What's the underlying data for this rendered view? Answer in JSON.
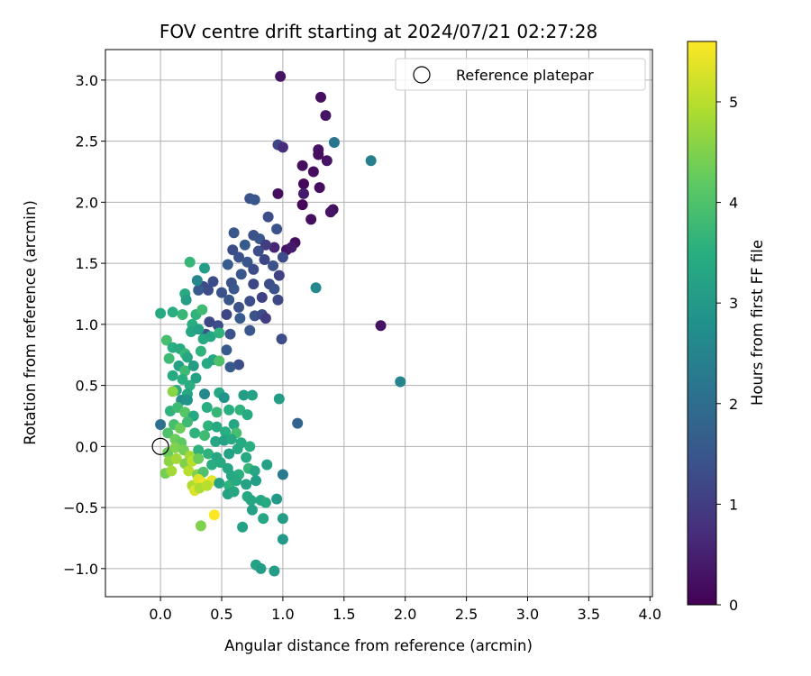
{
  "chart_data": {
    "type": "scatter",
    "title": "FOV centre drift starting at 2024/07/21 02:27:28",
    "xlabel": "Angular distance from reference (arcmin)",
    "ylabel": "Rotation from reference (arcmin)",
    "xlim": [
      -0.45,
      4.02
    ],
    "ylim": [
      -1.23,
      3.25
    ],
    "xticks": [
      "0.0",
      "0.5",
      "1.0",
      "1.5",
      "2.0",
      "2.5",
      "3.0",
      "3.5",
      "4.0"
    ],
    "yticks": [
      "−1.0",
      "−0.5",
      "0.0",
      "0.5",
      "1.0",
      "1.5",
      "2.0",
      "2.5",
      "3.0"
    ],
    "grid": true,
    "legend": {
      "location": "top-right",
      "entries": [
        "Reference platepar"
      ]
    },
    "reference_point": {
      "x": 0.0,
      "y": 0.0,
      "marker": "open-circle"
    },
    "colorbar": {
      "label": "Hours from first FF file",
      "colormap": "viridis",
      "range": [
        0,
        5.6
      ],
      "ticks": [
        "0",
        "1",
        "2",
        "3",
        "4",
        "5"
      ]
    },
    "points": [
      [
        0.98,
        3.03,
        0.3
      ],
      [
        1.31,
        2.86,
        0.2
      ],
      [
        1.35,
        2.71,
        0.3
      ],
      [
        0.96,
        2.47,
        1.2
      ],
      [
        1.0,
        2.45,
        0.7
      ],
      [
        1.29,
        2.43,
        0.3
      ],
      [
        1.29,
        2.39,
        0.2
      ],
      [
        1.42,
        2.49,
        2.2
      ],
      [
        1.36,
        2.34,
        0.3
      ],
      [
        1.72,
        2.34,
        2.4
      ],
      [
        1.16,
        2.3,
        0.2
      ],
      [
        1.25,
        2.25,
        0.2
      ],
      [
        1.17,
        2.15,
        0.1
      ],
      [
        1.17,
        2.07,
        0.4
      ],
      [
        1.3,
        2.12,
        0.2
      ],
      [
        1.16,
        1.98,
        0.1
      ],
      [
        0.96,
        2.07,
        0.2
      ],
      [
        1.41,
        1.94,
        0.2
      ],
      [
        1.39,
        1.92,
        0.3
      ],
      [
        1.23,
        1.86,
        0.2
      ],
      [
        0.73,
        2.03,
        1.4
      ],
      [
        0.77,
        2.02,
        1.5
      ],
      [
        0.88,
        1.88,
        1.3
      ],
      [
        0.95,
        1.78,
        1.4
      ],
      [
        0.81,
        1.7,
        1.5
      ],
      [
        1.1,
        1.67,
        0.2
      ],
      [
        1.03,
        1.61,
        0.3
      ],
      [
        1.07,
        1.63,
        0.4
      ],
      [
        0.93,
        1.63,
        0.6
      ],
      [
        0.86,
        1.65,
        1.0
      ],
      [
        0.6,
        1.75,
        1.5
      ],
      [
        0.69,
        1.65,
        1.6
      ],
      [
        0.76,
        1.73,
        1.4
      ],
      [
        0.8,
        1.6,
        1.3
      ],
      [
        0.59,
        1.61,
        1.3
      ],
      [
        0.64,
        1.55,
        1.4
      ],
      [
        0.85,
        1.53,
        1.2
      ],
      [
        0.71,
        1.51,
        1.5
      ],
      [
        0.92,
        1.48,
        1.4
      ],
      [
        1.0,
        1.55,
        1.3
      ],
      [
        0.55,
        1.49,
        1.6
      ],
      [
        0.76,
        1.45,
        1.3
      ],
      [
        0.66,
        1.41,
        1.5
      ],
      [
        0.97,
        1.4,
        1.1
      ],
      [
        0.58,
        1.34,
        1.4
      ],
      [
        0.43,
        1.35,
        1.3
      ],
      [
        0.5,
        1.26,
        1.4
      ],
      [
        0.6,
        1.29,
        1.5
      ],
      [
        0.76,
        1.33,
        1.2
      ],
      [
        0.89,
        1.33,
        1.3
      ],
      [
        0.93,
        1.29,
        1.4
      ],
      [
        0.83,
        1.22,
        1.1
      ],
      [
        0.35,
        1.31,
        1.3
      ],
      [
        0.39,
        1.28,
        1.3
      ],
      [
        0.31,
        1.28,
        1.6
      ],
      [
        0.56,
        1.2,
        1.5
      ],
      [
        0.64,
        1.14,
        1.4
      ],
      [
        0.73,
        1.19,
        1.3
      ],
      [
        0.96,
        1.2,
        1.2
      ],
      [
        0.54,
        1.08,
        1.2
      ],
      [
        0.65,
        1.05,
        1.6
      ],
      [
        0.77,
        1.07,
        1.4
      ],
      [
        0.83,
        1.08,
        1.3
      ],
      [
        0.86,
        1.05,
        1.0
      ],
      [
        0.4,
        1.02,
        1.2
      ],
      [
        0.47,
        0.99,
        1.3
      ],
      [
        0.37,
        0.92,
        1.5
      ],
      [
        0.57,
        0.92,
        1.4
      ],
      [
        0.73,
        0.95,
        1.5
      ],
      [
        0.99,
        0.88,
        1.3
      ],
      [
        1.8,
        0.99,
        0.3
      ],
      [
        1.27,
        1.3,
        2.6
      ],
      [
        1.96,
        0.53,
        2.5
      ],
      [
        0.54,
        0.79,
        1.6
      ],
      [
        0.64,
        0.67,
        1.3
      ],
      [
        0.57,
        0.65,
        1.6
      ],
      [
        0.24,
        1.51,
        3.7
      ],
      [
        0.36,
        1.46,
        3.1
      ],
      [
        0.18,
        1.08,
        3.7
      ],
      [
        0.0,
        1.09,
        3.4
      ],
      [
        0.1,
        1.1,
        3.5
      ],
      [
        0.2,
        1.25,
        3.4
      ],
      [
        0.21,
        1.2,
        3.1
      ],
      [
        0.3,
        1.36,
        2.6
      ],
      [
        0.26,
        1.0,
        3.5
      ],
      [
        0.29,
        1.08,
        3.6
      ],
      [
        0.34,
        1.12,
        3.8
      ],
      [
        0.25,
        0.94,
        3.3
      ],
      [
        0.31,
        0.96,
        3.2
      ],
      [
        0.35,
        0.88,
        3.4
      ],
      [
        0.41,
        0.9,
        3.3
      ],
      [
        0.48,
        0.93,
        3.6
      ],
      [
        0.05,
        0.87,
        3.9
      ],
      [
        0.1,
        0.81,
        3.5
      ],
      [
        0.16,
        0.8,
        3.4
      ],
      [
        0.2,
        0.76,
        3.7
      ],
      [
        0.22,
        0.73,
        3.3
      ],
      [
        0.33,
        0.78,
        3.6
      ],
      [
        0.07,
        0.72,
        3.8
      ],
      [
        0.15,
        0.66,
        3.2
      ],
      [
        0.2,
        0.62,
        3.8
      ],
      [
        0.27,
        0.66,
        3.1
      ],
      [
        0.38,
        0.68,
        3.4
      ],
      [
        0.43,
        0.71,
        3.3
      ],
      [
        0.48,
        0.7,
        4.0
      ],
      [
        0.1,
        0.58,
        3.4
      ],
      [
        0.18,
        0.55,
        3.5
      ],
      [
        0.24,
        0.5,
        3.5
      ],
      [
        0.29,
        0.56,
        3.2
      ],
      [
        0.13,
        0.46,
        3.4
      ],
      [
        0.22,
        0.43,
        3.3
      ],
      [
        0.1,
        0.45,
        4.6
      ],
      [
        0.17,
        0.38,
        2.7
      ],
      [
        0.22,
        0.38,
        2.9
      ],
      [
        0.36,
        0.43,
        2.6
      ],
      [
        0.48,
        0.44,
        3.3
      ],
      [
        0.52,
        0.4,
        2.9
      ],
      [
        0.68,
        0.42,
        3.1
      ],
      [
        0.75,
        0.42,
        3.2
      ],
      [
        0.97,
        0.39,
        3.1
      ],
      [
        0.08,
        0.29,
        3.6
      ],
      [
        0.14,
        0.32,
        3.8
      ],
      [
        0.2,
        0.28,
        4.1
      ],
      [
        0.27,
        0.25,
        3.4
      ],
      [
        0.38,
        0.32,
        3.5
      ],
      [
        0.46,
        0.28,
        3.7
      ],
      [
        0.56,
        0.3,
        3.5
      ],
      [
        0.65,
        0.3,
        3.6
      ],
      [
        0.71,
        0.26,
        3.4
      ],
      [
        0.0,
        0.18,
        2.1
      ],
      [
        0.11,
        0.18,
        3.9
      ],
      [
        0.16,
        0.15,
        4.3
      ],
      [
        0.22,
        0.2,
        3.8
      ],
      [
        0.39,
        0.17,
        3.6
      ],
      [
        0.46,
        0.16,
        3.4
      ],
      [
        0.53,
        0.12,
        3.5
      ],
      [
        0.6,
        0.18,
        3.3
      ],
      [
        0.62,
        0.11,
        3.9
      ],
      [
        1.12,
        0.19,
        1.8
      ],
      [
        0.06,
        0.11,
        4.0
      ],
      [
        0.12,
        0.06,
        4.3
      ],
      [
        0.17,
        0.03,
        4.2
      ],
      [
        0.28,
        0.11,
        3.6
      ],
      [
        0.36,
        0.09,
        3.8
      ],
      [
        0.45,
        0.04,
        3.3
      ],
      [
        0.52,
        0.05,
        3.2
      ],
      [
        0.58,
        0.06,
        3.4
      ],
      [
        0.66,
        0.03,
        3.4
      ],
      [
        0.73,
        0.0,
        3.5
      ],
      [
        0.06,
        -0.05,
        4.3
      ],
      [
        0.12,
        -0.01,
        4.5
      ],
      [
        0.19,
        -0.03,
        4.4
      ],
      [
        0.24,
        -0.08,
        4.8
      ],
      [
        0.31,
        -0.03,
        3.6
      ],
      [
        0.39,
        -0.06,
        3.6
      ],
      [
        0.46,
        -0.09,
        3.3
      ],
      [
        0.56,
        -0.06,
        3.2
      ],
      [
        0.63,
        -0.02,
        3.4
      ],
      [
        0.7,
        -0.09,
        3.4
      ],
      [
        0.07,
        -0.12,
        4.6
      ],
      [
        0.13,
        -0.1,
        4.8
      ],
      [
        0.2,
        -0.14,
        4.5
      ],
      [
        0.26,
        -0.12,
        5.0
      ],
      [
        0.31,
        -0.1,
        4.3
      ],
      [
        0.42,
        -0.15,
        3.5
      ],
      [
        0.49,
        -0.13,
        3.4
      ],
      [
        0.55,
        -0.18,
        3.3
      ],
      [
        0.72,
        -0.18,
        3.7
      ],
      [
        0.87,
        -0.15,
        3.2
      ],
      [
        0.04,
        -0.22,
        4.4
      ],
      [
        0.09,
        -0.2,
        4.8
      ],
      [
        0.23,
        -0.2,
        5.0
      ],
      [
        0.3,
        -0.23,
        4.5
      ],
      [
        0.35,
        -0.21,
        4.0
      ],
      [
        0.58,
        -0.24,
        3.3
      ],
      [
        0.64,
        -0.23,
        3.5
      ],
      [
        0.77,
        -0.2,
        3.3
      ],
      [
        0.78,
        -0.28,
        3.1
      ],
      [
        1.0,
        -0.23,
        2.3
      ],
      [
        0.26,
        -0.32,
        4.9
      ],
      [
        0.31,
        -0.27,
        5.3
      ],
      [
        0.35,
        -0.3,
        5.5
      ],
      [
        0.42,
        -0.28,
        5.4
      ],
      [
        0.48,
        -0.3,
        3.2
      ],
      [
        0.56,
        -0.32,
        3.6
      ],
      [
        0.62,
        -0.28,
        3.4
      ],
      [
        0.7,
        -0.31,
        3.2
      ],
      [
        0.28,
        -0.36,
        5.3
      ],
      [
        0.32,
        -0.34,
        4.9
      ],
      [
        0.38,
        -0.32,
        5.0
      ],
      [
        0.55,
        -0.39,
        3.2
      ],
      [
        0.6,
        -0.37,
        3.3
      ],
      [
        0.71,
        -0.41,
        3.4
      ],
      [
        0.74,
        -0.44,
        3.3
      ],
      [
        0.82,
        -0.44,
        3.3
      ],
      [
        0.95,
        -0.43,
        3.0
      ],
      [
        0.75,
        -0.52,
        3.2
      ],
      [
        0.86,
        -0.46,
        3.4
      ],
      [
        0.44,
        -0.56,
        5.6
      ],
      [
        0.33,
        -0.65,
        4.5
      ],
      [
        0.67,
        -0.66,
        3.2
      ],
      [
        0.84,
        -0.59,
        3.3
      ],
      [
        1.0,
        -0.59,
        3.1
      ],
      [
        0.78,
        -0.97,
        3.2
      ],
      [
        0.82,
        -1.0,
        3.1
      ],
      [
        0.93,
        -1.02,
        3.1
      ],
      [
        1.0,
        -0.76,
        3.0
      ]
    ]
  }
}
